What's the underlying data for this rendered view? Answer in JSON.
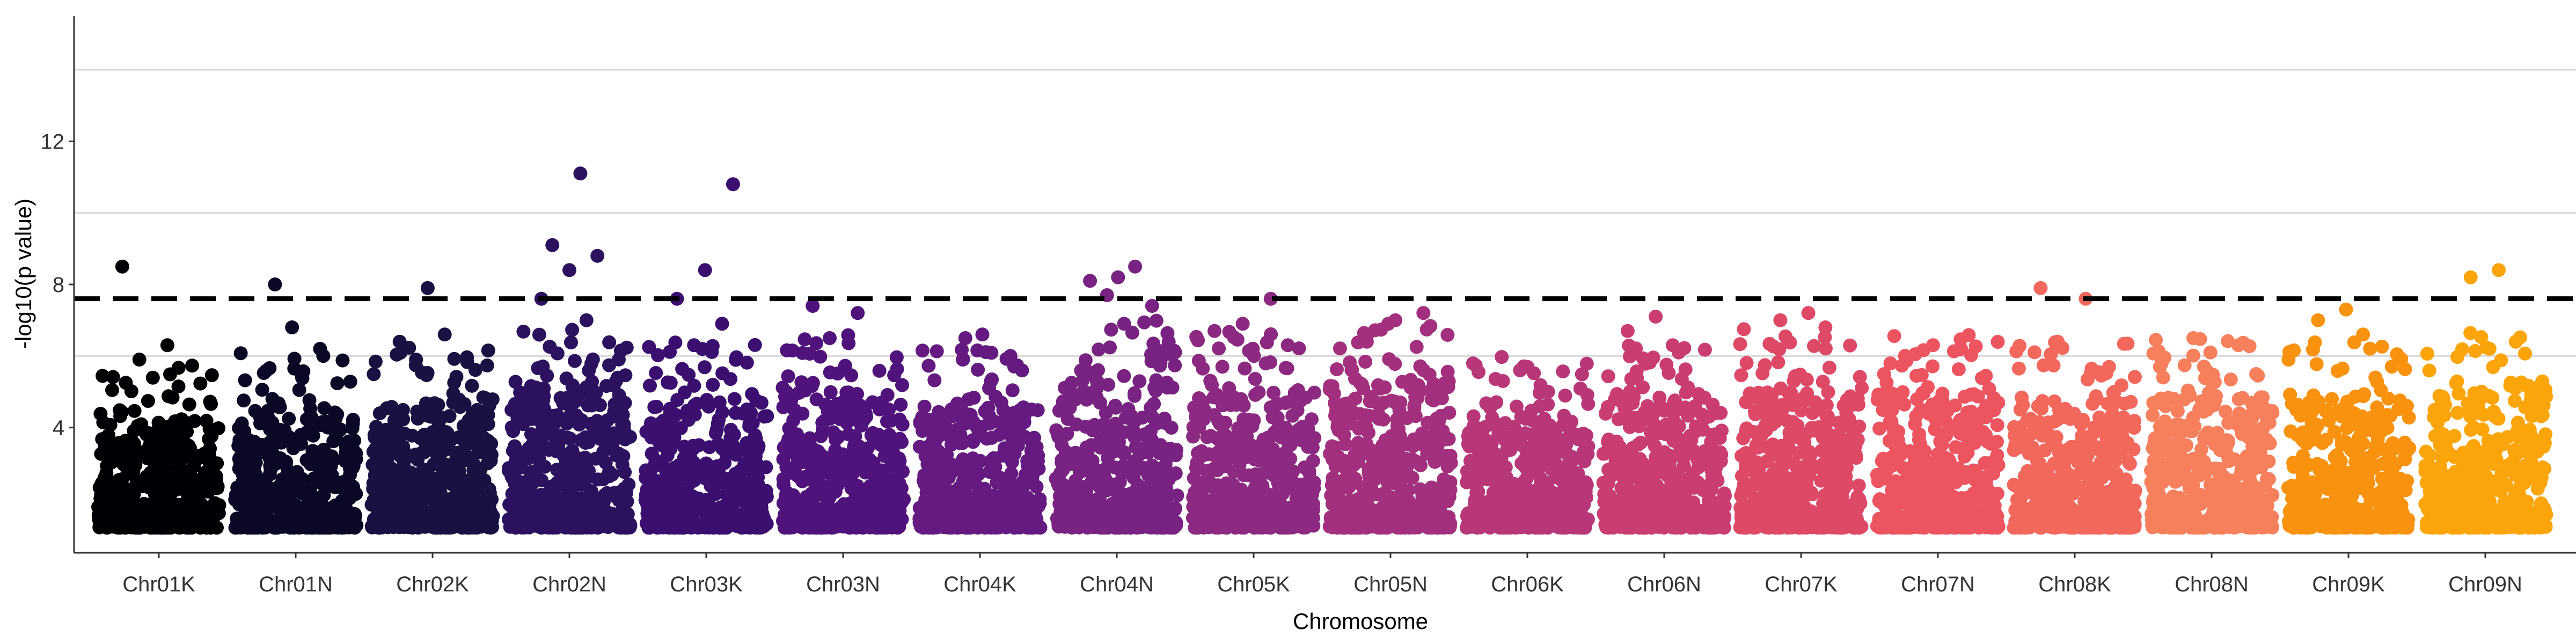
{
  "chart_data": {
    "type": "scatter",
    "subtype": "manhattan",
    "title": "",
    "xlabel": "Chromosome",
    "ylabel": "-log10(p value)",
    "ylim": [
      0.5,
      15.5
    ],
    "yticks": [
      4,
      8,
      12
    ],
    "gridlines_y": [
      6,
      10,
      14
    ],
    "significance_threshold": 7.6,
    "categories": [
      "Chr01K",
      "Chr01N",
      "Chr02K",
      "Chr02N",
      "Chr03K",
      "Chr03N",
      "Chr04K",
      "Chr04N",
      "Chr05K",
      "Chr05N",
      "Chr06K",
      "Chr06N",
      "Chr07K",
      "Chr07N",
      "Chr08K",
      "Chr08N",
      "Chr09K",
      "Chr09N"
    ],
    "colors": [
      "#000004",
      "#0b0826",
      "#1a1042",
      "#2c115f",
      "#3b0f70",
      "#50127b",
      "#641a80",
      "#782281",
      "#8c2981",
      "#a3307e",
      "#b73779",
      "#c93d73",
      "#de4968",
      "#ec5560",
      "#f3685c",
      "#f7805c",
      "#f8920f",
      "#fca50a"
    ],
    "body_max": [
      4.2,
      4.5,
      4.7,
      5.2,
      4.8,
      5.0,
      4.6,
      5.4,
      5.1,
      5.3,
      4.4,
      4.9,
      5.2,
      5.0,
      4.8,
      4.9,
      4.8,
      5.1
    ],
    "highlights": [
      {
        "chr": "Chr01K",
        "values": [
          8.5,
          6.3,
          5.9
        ]
      },
      {
        "chr": "Chr01N",
        "values": [
          8.0,
          6.2,
          6.8
        ]
      },
      {
        "chr": "Chr02K",
        "values": [
          7.9,
          6.4,
          6.6
        ]
      },
      {
        "chr": "Chr02N",
        "values": [
          11.1,
          9.1,
          8.8,
          8.4,
          7.6,
          7.0
        ]
      },
      {
        "chr": "Chr03K",
        "values": [
          10.8,
          8.4,
          7.6,
          6.9,
          6.3
        ]
      },
      {
        "chr": "Chr03N",
        "values": [
          7.4,
          7.2,
          6.5
        ]
      },
      {
        "chr": "Chr04K",
        "values": [
          6.5,
          6.0,
          6.6
        ]
      },
      {
        "chr": "Chr04N",
        "values": [
          8.2,
          8.1,
          8.5,
          7.7,
          7.4,
          6.9
        ]
      },
      {
        "chr": "Chr05K",
        "values": [
          7.6,
          6.9,
          6.3
        ]
      },
      {
        "chr": "Chr05N",
        "values": [
          7.2,
          7.0,
          6.6
        ]
      },
      {
        "chr": "Chr06K",
        "values": [
          5.3,
          5.0,
          5.6
        ]
      },
      {
        "chr": "Chr06N",
        "values": [
          7.1,
          6.7,
          6.3
        ]
      },
      {
        "chr": "Chr07K",
        "values": [
          7.2,
          7.0,
          6.8
        ]
      },
      {
        "chr": "Chr07N",
        "values": [
          6.2,
          6.3,
          6.0
        ]
      },
      {
        "chr": "Chr08K",
        "values": [
          7.9,
          7.6,
          6.4
        ]
      },
      {
        "chr": "Chr08N",
        "values": [
          6.5,
          6.3,
          6.1
        ]
      },
      {
        "chr": "Chr09K",
        "values": [
          7.3,
          7.0,
          6.6
        ]
      },
      {
        "chr": "Chr09N",
        "values": [
          8.4,
          8.2,
          6.4
        ]
      }
    ]
  }
}
